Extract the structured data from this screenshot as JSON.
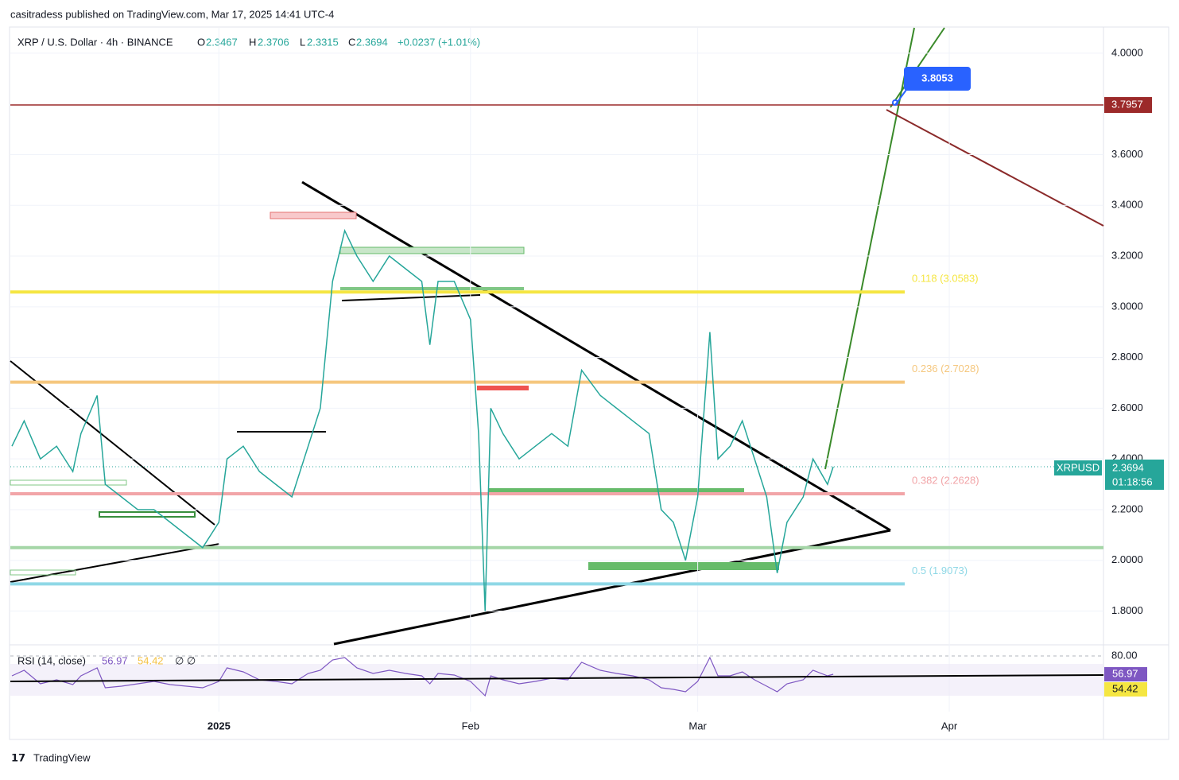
{
  "header": "casitradess published on TradingView.com, Mar 17, 2025 14:41 UTC-4",
  "chart_data": {
    "type": "line",
    "title": "XRP / U.S. Dollar · 4h · BINANCE",
    "ohlc": {
      "o_label": "O",
      "o": 2.3467,
      "h_label": "H",
      "h": 2.3706,
      "l_label": "L",
      "l": 2.3315,
      "c_label": "C",
      "c": 2.3694,
      "change": "+0.0237 (+1.01%)"
    },
    "x": [
      -25.5,
      -24,
      -22,
      -20,
      -18,
      -17,
      -15,
      -14,
      -12,
      -10,
      -8,
      -6,
      -4,
      -2,
      0,
      1,
      3,
      5,
      7,
      9,
      11,
      12.5,
      14,
      15.5,
      17,
      19,
      21,
      23,
      25,
      26,
      27,
      29,
      31,
      32,
      32.8,
      33.5,
      35,
      37,
      39,
      41,
      43,
      44.7,
      47,
      49,
      51,
      53,
      54.5,
      56,
      57.5,
      59,
      60.5,
      61.5,
      63,
      64.5,
      66,
      67.5,
      68.8,
      70,
      72,
      73.2,
      75,
      75.7
    ],
    "series": [
      {
        "name": "XRPUSD",
        "color": "#26a69a",
        "values": [
          2.45,
          2.55,
          2.4,
          2.45,
          2.35,
          2.5,
          2.65,
          2.3,
          2.25,
          2.2,
          2.2,
          2.15,
          2.1,
          2.05,
          2.15,
          2.4,
          2.45,
          2.35,
          2.3,
          2.25,
          2.45,
          2.6,
          3.1,
          3.3,
          3.2,
          3.1,
          3.2,
          3.15,
          3.1,
          2.85,
          3.1,
          3.1,
          2.95,
          2.5,
          1.8,
          2.6,
          2.5,
          2.4,
          2.45,
          2.5,
          2.45,
          2.75,
          2.65,
          2.6,
          2.55,
          2.5,
          2.2,
          2.15,
          2.0,
          2.25,
          2.9,
          2.4,
          2.45,
          2.55,
          2.4,
          2.25,
          1.95,
          2.15,
          2.25,
          2.4,
          2.3,
          2.3694
        ]
      }
    ],
    "last_price": 2.3694,
    "countdown": "01:18:56",
    "xlim": [
      -25.7,
      109
    ],
    "xticks": [
      {
        "value": 0,
        "label": "2025"
      },
      {
        "value": 31,
        "label": "Feb"
      },
      {
        "value": 59,
        "label": "Mar"
      },
      {
        "value": 90,
        "label": "Apr"
      }
    ],
    "ylim": [
      1.67,
      4.1
    ],
    "yticks": [
      {
        "value": 1.8,
        "label": "1.8000"
      },
      {
        "value": 2.0,
        "label": "2.0000"
      },
      {
        "value": 2.2,
        "label": "2.2000"
      },
      {
        "value": 2.4,
        "label": "2.4000"
      },
      {
        "value": 2.6,
        "label": "2.6000"
      },
      {
        "value": 2.8,
        "label": "2.8000"
      },
      {
        "value": 3.0,
        "label": "3.0000"
      },
      {
        "value": 3.2,
        "label": "3.2000"
      },
      {
        "value": 3.4,
        "label": "3.4000"
      },
      {
        "value": 3.6,
        "label": "3.6000"
      },
      {
        "value": 4.0,
        "label": "4.0000"
      }
    ],
    "grid": true,
    "levels": [
      {
        "value": 3.0583,
        "label": "0.118 (3.0583)",
        "color": "#f5e642"
      },
      {
        "value": 2.7028,
        "label": "0.236 (2.7028)",
        "color": "#f5c77e"
      },
      {
        "value": 2.2628,
        "label": "0.382 (2.2628)",
        "color": "#f2a5a8"
      },
      {
        "value": 1.9073,
        "label": "0.5 (1.9073)",
        "color": "#8fd8e6"
      },
      {
        "value": 2.05,
        "color": "#a5d6a7"
      }
    ],
    "resistance": {
      "value": 3.7957,
      "label": "3.7957",
      "color": "#9c2a2a"
    },
    "target": 3.8053,
    "rsi": {
      "title": "RSI (14, close)",
      "color": "#7e57c2",
      "values": [
        55,
        62,
        45,
        50,
        44,
        55,
        65,
        40,
        42,
        45,
        48,
        44,
        42,
        40,
        48,
        65,
        60,
        50,
        48,
        45,
        58,
        62,
        75,
        78,
        65,
        58,
        62,
        58,
        55,
        45,
        58,
        56,
        48,
        38,
        30,
        55,
        50,
        45,
        48,
        52,
        50,
        72,
        62,
        58,
        55,
        50,
        40,
        38,
        35,
        48,
        78,
        55,
        55,
        60,
        50,
        42,
        35,
        45,
        50,
        62,
        55,
        56.97
      ],
      "last": 56.97,
      "ma_last": 54.42,
      "extra": "∅ ∅",
      "ylim": [
        20,
        80
      ],
      "yticks": [
        {
          "value": 80,
          "label": "80.00"
        }
      ]
    },
    "footer": "TradingView"
  }
}
